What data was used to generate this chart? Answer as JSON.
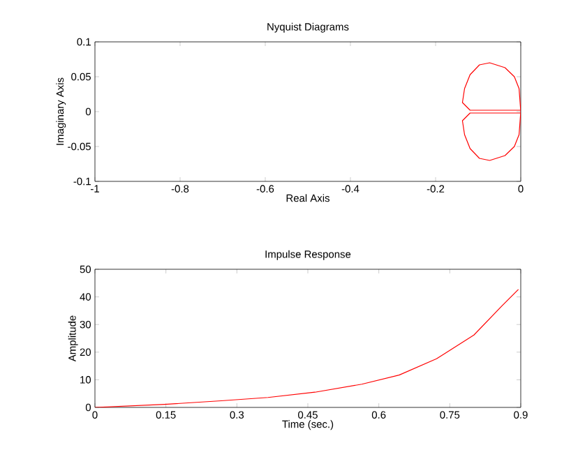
{
  "chart_data": [
    {
      "type": "line",
      "title": "Nyquist Diagrams",
      "xlabel": "Real Axis",
      "ylabel": "Imaginary Axis",
      "xlim": [
        -1,
        0
      ],
      "ylim": [
        -0.1,
        0.1
      ],
      "xticks": [
        -1,
        -0.8,
        -0.6,
        -0.4,
        -0.2,
        0
      ],
      "yticks": [
        -0.1,
        -0.05,
        0,
        0.05,
        0.1
      ],
      "grid": false,
      "marker": "none",
      "line_style": "solid",
      "series": [
        {
          "color": "#ff0000",
          "x": [
            0,
            -0.086,
            -0.119,
            -0.137,
            -0.132,
            -0.119,
            -0.097,
            -0.073,
            -0.037,
            -0.015,
            -0.004,
            0,
            -0.004,
            -0.015,
            -0.037,
            -0.073,
            -0.097,
            -0.119,
            -0.132,
            -0.137,
            -0.119,
            -0.086,
            0
          ],
          "values": [
            0.002,
            0.002,
            0.002,
            0.013,
            0.033,
            0.053,
            0.067,
            0.07,
            0.063,
            0.05,
            0.033,
            0,
            -0.033,
            -0.05,
            -0.063,
            -0.07,
            -0.067,
            -0.053,
            -0.033,
            -0.013,
            -0.002,
            -0.002,
            -0.002
          ]
        }
      ]
    },
    {
      "type": "line",
      "title": "Impulse Response",
      "xlabel": "Time (sec.)",
      "ylabel": "Amplitude",
      "xlim": [
        0,
        0.9
      ],
      "ylim": [
        0,
        50
      ],
      "xticks": [
        0,
        0.15,
        0.3,
        0.45,
        0.6,
        0.75,
        0.9
      ],
      "yticks": [
        0,
        10,
        20,
        30,
        40,
        50
      ],
      "grid": false,
      "marker": "none",
      "line_style": "solid",
      "series": [
        {
          "color": "#ff0000",
          "x": [
            0,
            0.148,
            0.267,
            0.366,
            0.465,
            0.564,
            0.643,
            0.722,
            0.801,
            0.86,
            0.895
          ],
          "values": [
            0,
            1.1,
            2.4,
            3.6,
            5.5,
            8.4,
            11.7,
            17.6,
            26.2,
            36.7,
            42.7
          ]
        }
      ]
    }
  ]
}
